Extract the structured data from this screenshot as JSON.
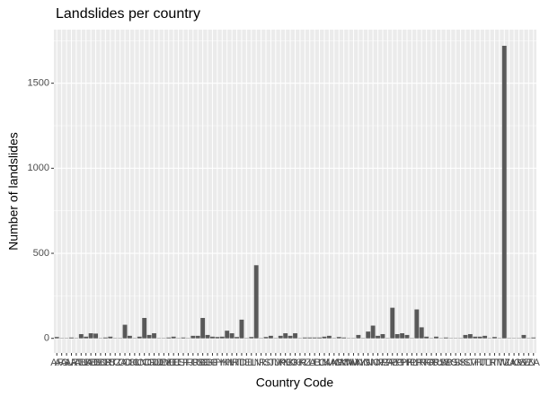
{
  "chart_data": {
    "type": "bar",
    "title": "Landslides per country",
    "x_label": "Country Code",
    "y_label": "Number of landslides",
    "categories": [
      "AF",
      "AG",
      "AL",
      "AR",
      "AT",
      "AU",
      "BA",
      "BD",
      "BE",
      "BO",
      "BR",
      "BT",
      "BZ",
      "CA",
      "CD",
      "CH",
      "CL",
      "CN",
      "CO",
      "CR",
      "CU",
      "DE",
      "DM",
      "DO",
      "EC",
      "ES",
      "ET",
      "FJ",
      "FR",
      "GB",
      "GE",
      "GH",
      "GT",
      "GY",
      "HK",
      "HN",
      "HR",
      "HT",
      "ID",
      "IE",
      "IL",
      "IN",
      "IR",
      "IS",
      "IT",
      "JM",
      "JP",
      "KE",
      "KG",
      "KH",
      "KR",
      "KZ",
      "LA",
      "LB",
      "LC",
      "LK",
      "MA",
      "MG",
      "MK",
      "MM",
      "MW",
      "MX",
      "MY",
      "NG",
      "NI",
      "NO",
      "NP",
      "NZ",
      "PA",
      "PE",
      "PG",
      "PH",
      "PK",
      "PL",
      "PR",
      "PT",
      "RO",
      "RS",
      "RU",
      "RW",
      "SB",
      "SG",
      "SI",
      "SK",
      "SL",
      "SV",
      "TH",
      "TJ",
      "TL",
      "TR",
      "TT",
      "TW",
      "TZ",
      "UA",
      "UG",
      "US",
      "VE",
      "VN",
      "ZA"
    ],
    "values": [
      8,
      2,
      2,
      5,
      2,
      25,
      10,
      30,
      28,
      2,
      5,
      10,
      2,
      2,
      80,
      15,
      2,
      10,
      120,
      20,
      30,
      2,
      2,
      5,
      10,
      2,
      5,
      2,
      15,
      15,
      120,
      20,
      10,
      8,
      10,
      45,
      30,
      8,
      110,
      2,
      8,
      430,
      2,
      8,
      15,
      2,
      15,
      30,
      15,
      30,
      2,
      5,
      5,
      5,
      5,
      10,
      15,
      2,
      8,
      5,
      2,
      2,
      20,
      2,
      40,
      75,
      15,
      25,
      2,
      180,
      25,
      30,
      20,
      2,
      170,
      65,
      10,
      2,
      10,
      2,
      5,
      2,
      2,
      2,
      20,
      25,
      10,
      10,
      15,
      2,
      8,
      2,
      1720,
      2,
      2,
      2,
      20,
      2,
      5
    ],
    "color": "#595959",
    "ylim": [
      -86,
      1815
    ],
    "yticks": [
      0,
      500,
      1000,
      1500
    ],
    "grid": true
  }
}
